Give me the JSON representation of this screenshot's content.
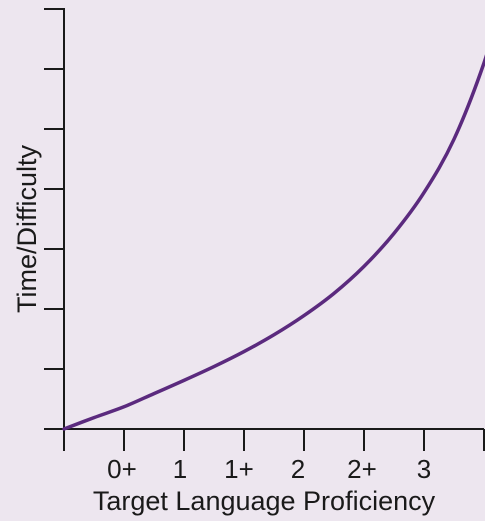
{
  "chart_data": {
    "type": "line",
    "title": "",
    "xlabel": "Target Language Proficiency",
    "ylabel": "Time/Difficulty",
    "x_tick_labels": [
      "0+",
      "1",
      "1+",
      "2",
      "2+",
      "3"
    ],
    "x_tick_count": 8,
    "y_tick_count": 8,
    "y_tick_labels": [],
    "grid": false,
    "legend": "none",
    "series": [
      {
        "color": "#5b2a7e",
        "x": [
          0,
          0.5,
          1,
          1.5,
          2,
          2.5,
          3,
          3.5,
          4,
          4.5,
          5,
          5.5,
          6,
          6.5,
          7,
          7.25
        ],
        "y": [
          0,
          0.19,
          0.37,
          0.59,
          0.81,
          1.04,
          1.29,
          1.57,
          1.89,
          2.26,
          2.71,
          3.26,
          3.94,
          4.83,
          6.1,
          7.0
        ]
      }
    ],
    "xlim": [
      0,
      7
    ],
    "ylim": [
      0,
      7
    ]
  },
  "colors": {
    "background": "#ede6ef",
    "axis": "#1a1a1a",
    "curve": "#5b2a7e"
  }
}
